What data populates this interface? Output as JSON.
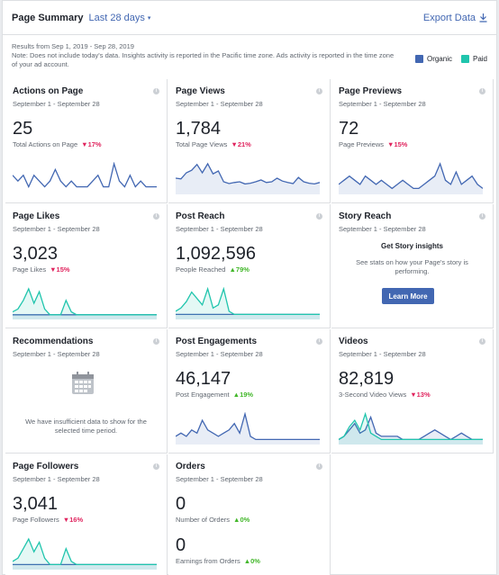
{
  "header": {
    "title": "Page Summary",
    "range": "Last 28 days",
    "export": "Export Data"
  },
  "note": {
    "line1": "Results from Sep 1, 2019 - Sep 28, 2019",
    "line2": "Note: Does not include today's data. Insights activity is reported in the Pacific time zone. Ads activity is reported in the time zone of your ad account."
  },
  "legend": {
    "organic": "Organic",
    "paid": "Paid",
    "organic_color": "#4267b2",
    "paid_color": "#20c5ad"
  },
  "cards": {
    "actions": {
      "title": "Actions on Page",
      "date": "September 1 - September 28",
      "value": "25",
      "metric": "Total Actions on Page",
      "change": "17%",
      "dir": "down"
    },
    "views": {
      "title": "Page Views",
      "date": "September 1 - September 28",
      "value": "1,784",
      "metric": "Total Page Views",
      "change": "21%",
      "dir": "down"
    },
    "previews": {
      "title": "Page Previews",
      "date": "September 1 - September 28",
      "value": "72",
      "metric": "Page Previews",
      "change": "15%",
      "dir": "down"
    },
    "likes": {
      "title": "Page Likes",
      "date": "September 1 - September 28",
      "value": "3,023",
      "metric": "Page Likes",
      "change": "15%",
      "dir": "down"
    },
    "reach": {
      "title": "Post Reach",
      "date": "September 1 - September 28",
      "value": "1,092,596",
      "metric": "People Reached",
      "change": "79%",
      "dir": "up"
    },
    "story": {
      "title": "Story Reach",
      "date": "September 1 - September 28",
      "heading": "Get Story insights",
      "text": "See stats on how your Page's story is performing.",
      "button": "Learn More"
    },
    "recs": {
      "title": "Recommendations",
      "date": "September 1 - September 28",
      "text": "We have insufficient data to show for the selected time period."
    },
    "engagements": {
      "title": "Post Engagements",
      "date": "September 1 - September 28",
      "value": "46,147",
      "metric": "Post Engagement",
      "change": "19%",
      "dir": "up"
    },
    "videos": {
      "title": "Videos",
      "date": "September 1 - September 28",
      "value": "82,819",
      "metric": "3-Second Video Views",
      "change": "13%",
      "dir": "down"
    },
    "followers": {
      "title": "Page Followers",
      "date": "September 1 - September 28",
      "value": "3,041",
      "metric": "Page Followers",
      "change": "16%",
      "dir": "down"
    },
    "orders": {
      "title": "Orders",
      "date": "September 1 - September 28",
      "value1": "0",
      "metric1": "Number of Orders",
      "change1": "0%",
      "value2": "0",
      "metric2": "Earnings from Orders",
      "change2": "0%"
    }
  },
  "chart_data": [
    {
      "type": "line",
      "name": "actions",
      "series": [
        {
          "values": [
            3,
            2,
            3,
            1,
            3,
            2,
            1,
            2,
            4,
            2,
            1,
            2,
            1,
            1,
            1,
            2,
            3,
            1,
            1,
            5,
            2,
            1,
            3,
            1,
            2,
            1,
            1,
            1
          ]
        }
      ]
    },
    {
      "type": "area",
      "name": "views",
      "series": [
        {
          "values": [
            40,
            38,
            55,
            62,
            78,
            55,
            80,
            52,
            60,
            30,
            25,
            28,
            30,
            24,
            26,
            30,
            35,
            28,
            30,
            40,
            32,
            28,
            25,
            42,
            30,
            26,
            24,
            28
          ]
        }
      ]
    },
    {
      "type": "area",
      "name": "previews",
      "series": [
        {
          "values": [
            2,
            3,
            4,
            3,
            2,
            4,
            3,
            2,
            3,
            2,
            1,
            2,
            3,
            2,
            1,
            1,
            2,
            3,
            4,
            7,
            3,
            2,
            5,
            2,
            3,
            4,
            2,
            1
          ]
        }
      ]
    },
    {
      "type": "area",
      "name": "likes",
      "series": [
        {
          "name": "Organic",
          "values": [
            1,
            1,
            1,
            1,
            1,
            1,
            1,
            1,
            1,
            1,
            1,
            1,
            1,
            1,
            1,
            1,
            1,
            1,
            1,
            1,
            1,
            1,
            1,
            1,
            1,
            1,
            1,
            1
          ]
        },
        {
          "name": "Paid",
          "values": [
            2,
            3,
            6,
            10,
            5,
            9,
            3,
            1,
            1,
            1,
            6,
            2,
            1,
            1,
            1,
            1,
            1,
            1,
            1,
            1,
            1,
            1,
            1,
            1,
            1,
            1,
            1,
            1
          ]
        }
      ]
    },
    {
      "type": "area",
      "name": "reach",
      "series": [
        {
          "name": "Organic",
          "values": [
            1,
            1,
            1,
            1,
            1,
            1,
            1,
            1,
            1,
            1,
            1,
            1,
            1,
            1,
            1,
            1,
            1,
            1,
            1,
            1,
            1,
            1,
            1,
            1,
            1,
            1,
            1,
            1
          ]
        },
        {
          "name": "Paid",
          "values": [
            2,
            3,
            5,
            8,
            6,
            4,
            9,
            3,
            4,
            9,
            2,
            1,
            1,
            1,
            1,
            1,
            1,
            1,
            1,
            1,
            1,
            1,
            1,
            1,
            1,
            1,
            1,
            1
          ]
        }
      ]
    },
    {
      "type": "area",
      "name": "engagements",
      "series": [
        {
          "values": [
            2,
            3,
            2,
            4,
            3,
            7,
            4,
            3,
            2,
            3,
            4,
            6,
            3,
            9,
            2,
            1,
            1,
            1,
            1,
            1,
            1,
            1,
            1,
            1,
            1,
            1,
            1,
            1
          ]
        }
      ]
    },
    {
      "type": "area",
      "name": "videos",
      "series": [
        {
          "name": "Organic",
          "values": [
            1,
            2,
            4,
            6,
            3,
            4,
            8,
            3,
            2,
            2,
            2,
            2,
            1,
            1,
            1,
            1,
            2,
            3,
            4,
            3,
            2,
            1,
            2,
            3,
            2,
            1,
            1,
            1
          ]
        },
        {
          "name": "Paid",
          "values": [
            1,
            2,
            5,
            7,
            4,
            9,
            3,
            2,
            1,
            1,
            1,
            1,
            1,
            1,
            1,
            1,
            1,
            1,
            1,
            1,
            1,
            1,
            1,
            1,
            1,
            1,
            1,
            1
          ]
        }
      ]
    },
    {
      "type": "area",
      "name": "followers",
      "series": [
        {
          "name": "Organic",
          "values": [
            1,
            1,
            1,
            1,
            1,
            1,
            1,
            1,
            1,
            1,
            1,
            1,
            1,
            1,
            1,
            1,
            1,
            1,
            1,
            1,
            1,
            1,
            1,
            1,
            1,
            1,
            1,
            1
          ]
        },
        {
          "name": "Paid",
          "values": [
            2,
            3,
            6,
            9,
            5,
            8,
            3,
            1,
            1,
            1,
            6,
            2,
            1,
            1,
            1,
            1,
            1,
            1,
            1,
            1,
            1,
            1,
            1,
            1,
            1,
            1,
            1,
            1
          ]
        }
      ]
    }
  ]
}
